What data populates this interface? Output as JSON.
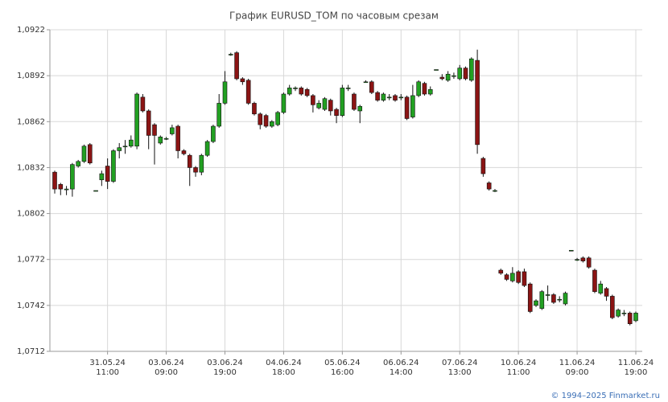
{
  "chart_data": {
    "type": "candlestick",
    "title": "График EURUSD_TOM по часовым срезам",
    "categories": [
      null,
      null,
      null,
      null,
      null,
      null,
      null,
      null,
      null,
      "31.05.24 11:00",
      null,
      null,
      null,
      null,
      null,
      null,
      null,
      null,
      null,
      "03.06.24 09:00",
      null,
      null,
      null,
      null,
      null,
      null,
      null,
      null,
      null,
      "03.06.24 19:00",
      null,
      null,
      null,
      null,
      null,
      null,
      null,
      null,
      null,
      "04.06.24 18:00",
      null,
      null,
      null,
      null,
      null,
      null,
      null,
      null,
      null,
      "05.06.24 16:00",
      null,
      null,
      null,
      null,
      null,
      null,
      null,
      null,
      null,
      "06.06.24 14:00",
      null,
      null,
      null,
      null,
      null,
      null,
      null,
      null,
      null,
      "07.06.24 13:00",
      null,
      null,
      null,
      null,
      null,
      null,
      null,
      null,
      null,
      "10.06.24 11:00",
      null,
      null,
      null,
      null,
      null,
      null,
      null,
      null,
      null,
      "11.06.24 09:00",
      null,
      null,
      null,
      null,
      null,
      null,
      null,
      null,
      null,
      "11.06.24 19:00"
    ],
    "open": [
      1.0829,
      1.0821,
      1.0818,
      1.0818,
      1.0833,
      1.0836,
      1.0847,
      1.0817,
      1.0824,
      1.0833,
      1.0823,
      1.0843,
      1.0846,
      1.0846,
      1.0846,
      1.0878,
      1.0869,
      1.086,
      1.0848,
      1.0851,
      1.0854,
      1.0859,
      1.0843,
      1.084,
      1.0832,
      1.0829,
      1.084,
      1.0849,
      1.0859,
      1.0874,
      1.0906,
      1.0907,
      1.089,
      1.0889,
      1.0874,
      1.0867,
      1.0866,
      1.0859,
      1.086,
      1.0868,
      1.088,
      1.0884,
      1.0884,
      1.0883,
      1.0879,
      1.0871,
      1.087,
      1.0876,
      1.087,
      1.0866,
      1.0884,
      1.088,
      1.0869,
      1.0888,
      1.0888,
      1.0881,
      1.0876,
      1.0878,
      1.0879,
      1.0878,
      1.0878,
      1.0865,
      1.0879,
      1.0887,
      1.088,
      1.0896,
      1.0891,
      1.0889,
      1.0892,
      1.089,
      1.0897,
      1.0889,
      1.0902,
      1.0838,
      1.0822,
      1.0817,
      1.0765,
      1.0762,
      1.0758,
      1.0764,
      1.0764,
      1.0756,
      1.0742,
      1.074,
      1.0749,
      1.0749,
      1.0746,
      1.0743,
      1.0778,
      1.0772,
      1.0773,
      1.0773,
      1.0765,
      1.075,
      1.0753,
      1.0748,
      1.0735,
      1.0737,
      1.0737,
      1.0732
    ],
    "high": [
      1.083,
      1.0822,
      1.082,
      1.0835,
      1.0837,
      1.0847,
      1.0848,
      1.0817,
      1.083,
      1.0838,
      1.0844,
      1.0848,
      1.085,
      1.0853,
      1.0881,
      1.088,
      1.087,
      1.0861,
      1.0853,
      1.0852,
      1.086,
      1.086,
      1.0844,
      1.0841,
      1.0833,
      1.0841,
      1.085,
      1.086,
      1.088,
      1.0895,
      1.0907,
      1.0908,
      1.0891,
      1.089,
      1.0875,
      1.0868,
      1.0867,
      1.0863,
      1.0869,
      1.0881,
      1.0886,
      1.0885,
      1.0885,
      1.0884,
      1.088,
      1.0876,
      1.0878,
      1.0877,
      1.0871,
      1.0886,
      1.0886,
      1.0881,
      1.0873,
      1.0889,
      1.0889,
      1.0882,
      1.0881,
      1.088,
      1.088,
      1.088,
      1.0879,
      1.0886,
      1.0889,
      1.0888,
      1.0885,
      1.0896,
      1.0893,
      1.0895,
      1.0894,
      1.0899,
      1.0898,
      1.0904,
      1.0909,
      1.0839,
      1.0823,
      1.0818,
      1.0766,
      1.0763,
      1.0767,
      1.0765,
      1.0766,
      1.0757,
      1.0746,
      1.0752,
      1.0755,
      1.075,
      1.0748,
      1.0751,
      1.0778,
      1.0773,
      1.0774,
      1.0774,
      1.0766,
      1.0758,
      1.0754,
      1.0749,
      1.074,
      1.0739,
      1.0738,
      1.0738
    ],
    "low": [
      1.0815,
      1.0814,
      1.0814,
      1.0813,
      1.0832,
      1.0835,
      1.0834,
      1.0817,
      1.082,
      1.0818,
      1.0822,
      1.0838,
      1.0841,
      1.0845,
      1.0844,
      1.0868,
      1.0844,
      1.0834,
      1.0847,
      1.085,
      1.0853,
      1.0838,
      1.084,
      1.082,
      1.0826,
      1.0827,
      1.0839,
      1.0848,
      1.0858,
      1.0873,
      1.0905,
      1.0889,
      1.0886,
      1.0873,
      1.0866,
      1.0857,
      1.0858,
      1.0858,
      1.0859,
      1.0867,
      1.0879,
      1.0882,
      1.0879,
      1.0878,
      1.0868,
      1.087,
      1.0869,
      1.0866,
      1.0861,
      1.0865,
      1.0882,
      1.0869,
      1.0861,
      1.0888,
      1.088,
      1.0875,
      1.0875,
      1.0876,
      1.0875,
      1.0876,
      1.0863,
      1.0864,
      1.0878,
      1.0879,
      1.0879,
      1.0896,
      1.0889,
      1.0888,
      1.089,
      1.0889,
      1.0889,
      1.0888,
      1.0841,
      1.0826,
      1.0817,
      1.0816,
      1.0762,
      1.0758,
      1.0757,
      1.0756,
      1.0754,
      1.0737,
      1.0741,
      1.0739,
      1.0745,
      1.0743,
      1.0744,
      1.0742,
      1.0778,
      1.0771,
      1.077,
      1.0766,
      1.075,
      1.0749,
      1.0745,
      1.0733,
      1.0734,
      1.0735,
      1.0729,
      1.0731
    ],
    "close": [
      1.0818,
      1.0818,
      1.0818,
      1.0834,
      1.0836,
      1.0846,
      1.0835,
      1.0817,
      1.0828,
      1.0823,
      1.0843,
      1.0845,
      1.0846,
      1.085,
      1.088,
      1.0869,
      1.0853,
      1.0853,
      1.0852,
      1.0851,
      1.0858,
      1.0843,
      1.0841,
      1.0832,
      1.0829,
      1.084,
      1.0849,
      1.0859,
      1.0874,
      1.0888,
      1.0906,
      1.089,
      1.0888,
      1.0874,
      1.0867,
      1.086,
      1.0859,
      1.0862,
      1.0868,
      1.088,
      1.0884,
      1.0884,
      1.088,
      1.0879,
      1.0873,
      1.0874,
      1.0877,
      1.0869,
      1.0866,
      1.0884,
      1.0884,
      1.087,
      1.0872,
      1.0888,
      1.0881,
      1.0876,
      1.088,
      1.0878,
      1.0876,
      1.0878,
      1.0864,
      1.0879,
      1.0888,
      1.088,
      1.0883,
      1.0896,
      1.089,
      1.0893,
      1.0892,
      1.0897,
      1.089,
      1.0903,
      1.0847,
      1.0828,
      1.0818,
      1.0817,
      1.0763,
      1.0759,
      1.0763,
      1.0757,
      1.0755,
      1.0738,
      1.0745,
      1.0751,
      1.0749,
      1.0744,
      1.0746,
      1.075,
      1.0778,
      1.0772,
      1.0771,
      1.0767,
      1.0751,
      1.0756,
      1.0748,
      1.0734,
      1.0739,
      1.0737,
      1.073,
      1.0737
    ],
    "up_color": "#22a022",
    "down_color": "#8b1414",
    "ylim": [
      1.0712,
      1.0922
    ],
    "yticks": [
      {
        "value": 1.0712,
        "label": "1,0712"
      },
      {
        "value": 1.0742,
        "label": "1,0742"
      },
      {
        "value": 1.0772,
        "label": "1,0772"
      },
      {
        "value": 1.0802,
        "label": "1,0802"
      },
      {
        "value": 1.0832,
        "label": "1,0832"
      },
      {
        "value": 1.0862,
        "label": "1,0862"
      },
      {
        "value": 1.0892,
        "label": "1,0892"
      },
      {
        "value": 1.0922,
        "label": "1,0922"
      }
    ],
    "grid": true
  },
  "footer": "© 1994–2025 Finmarket.ru"
}
